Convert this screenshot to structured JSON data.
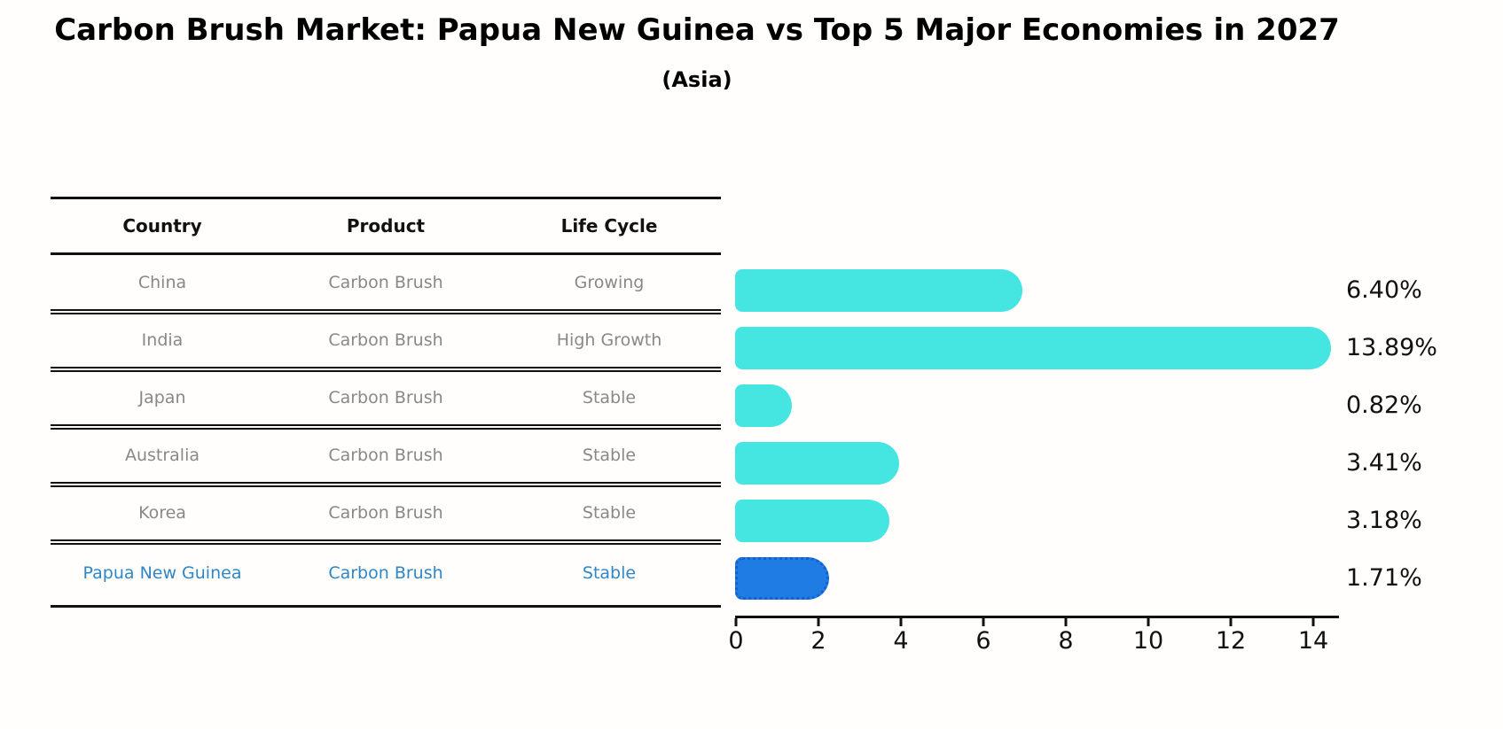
{
  "title": "Carbon Brush Market: Papua New Guinea vs Top 5 Major Economies in 2027",
  "subtitle": "(Asia)",
  "table": {
    "headers": [
      "Country",
      "Product",
      "Life Cycle"
    ],
    "rows": [
      {
        "country": "China",
        "product": "Carbon Brush",
        "life_cycle": "Growing",
        "highlight": false
      },
      {
        "country": "India",
        "product": "Carbon Brush",
        "life_cycle": "High Growth",
        "highlight": false
      },
      {
        "country": "Japan",
        "product": "Carbon Brush",
        "life_cycle": "Stable",
        "highlight": false
      },
      {
        "country": "Australia",
        "product": "Carbon Brush",
        "life_cycle": "Stable",
        "highlight": false
      },
      {
        "country": "Korea",
        "product": "Carbon Brush",
        "life_cycle": "Stable",
        "highlight": false
      },
      {
        "country": "Papua New Guinea",
        "product": "Carbon Brush",
        "life_cycle": "Stable",
        "highlight": true
      }
    ]
  },
  "chart_data": {
    "type": "bar",
    "orientation": "horizontal",
    "categories": [
      "China",
      "India",
      "Japan",
      "Australia",
      "Korea",
      "Papua New Guinea"
    ],
    "values": [
      6.4,
      13.89,
      0.82,
      3.41,
      3.18,
      1.71
    ],
    "value_labels": [
      "6.40%",
      "13.89%",
      "0.82%",
      "3.41%",
      "3.18%",
      "1.71%"
    ],
    "x_ticks": [
      0,
      2,
      4,
      6,
      8,
      10,
      12,
      14
    ],
    "xlim": [
      0,
      14.6
    ],
    "grid": false,
    "legend": false,
    "bar_color": "#45e5e2",
    "highlight_color": "#1f7ce2",
    "highlight_index": 5,
    "highlight_text_color": "#2e86c8"
  }
}
